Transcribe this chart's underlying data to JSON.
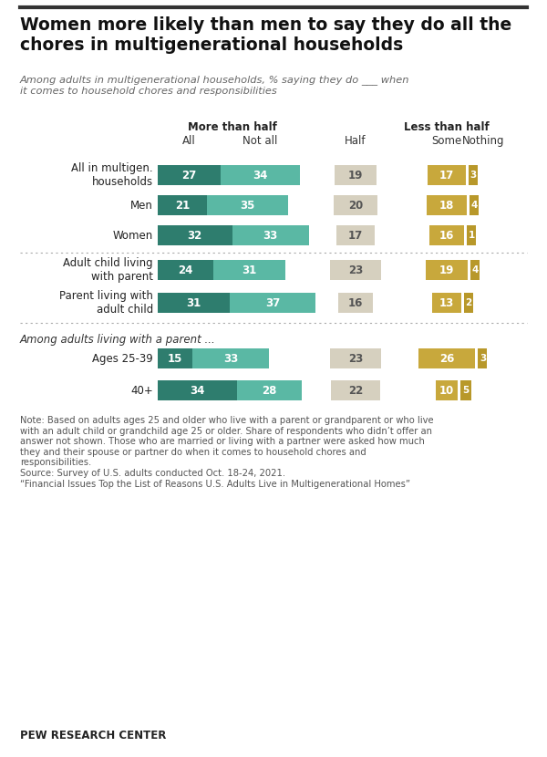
{
  "title": "Women more likely than men to say they do all the\nchores in multigenerational households",
  "subtitle": "Among adults in multigenerational households, % saying they do ___ when\nit comes to household chores and responsibilities",
  "rows": [
    {
      "label": "All in multigen.\nhouseholds",
      "all": 27,
      "not_all": 34,
      "half": 19,
      "some": 17,
      "nothing": 3
    },
    {
      "label": "Men",
      "all": 21,
      "not_all": 35,
      "half": 20,
      "some": 18,
      "nothing": 4
    },
    {
      "label": "Women",
      "all": 32,
      "not_all": 33,
      "half": 17,
      "some": 16,
      "nothing": 1
    },
    {
      "label": "Adult child living\nwith parent",
      "all": 24,
      "not_all": 31,
      "half": 23,
      "some": 19,
      "nothing": 4
    },
    {
      "label": "Parent living with\nadult child",
      "all": 31,
      "not_all": 37,
      "half": 16,
      "some": 13,
      "nothing": 2
    },
    {
      "label": "Ages 25-39",
      "all": 15,
      "not_all": 33,
      "half": 23,
      "some": 26,
      "nothing": 3
    },
    {
      "label": "40+",
      "all": 34,
      "not_all": 28,
      "half": 22,
      "some": 10,
      "nothing": 5
    }
  ],
  "subsection_text": "Among adults living with a parent ...",
  "col_header1_left": "More than half",
  "col_header1_right": "Less than half",
  "col_subheaders": [
    "All",
    "Not all",
    "Half",
    "Some",
    "Nothing"
  ],
  "color_all": "#2e7d6e",
  "color_not_all": "#5ab8a4",
  "color_half": "#d6d0bf",
  "color_some": "#c8a83c",
  "color_nothing": "#b8982a",
  "note_text": "Note: Based on adults ages 25 and older who live with a parent or grandparent or who live\nwith an adult child or grandchild age 25 or older. Share of respondents who didn’t offer an\nanswer not shown. Those who are married or living with a partner were asked how much\nthey and their spouse or partner do when it comes to household chores and\nresponsibilities.\nSource: Survey of U.S. adults conducted Oct. 18-24, 2021.\n“Financial Issues Top the List of Reasons U.S. Adults Live in Multigenerational Homes”",
  "footer": "PEW RESEARCH CENTER",
  "bg_color": "#ffffff"
}
